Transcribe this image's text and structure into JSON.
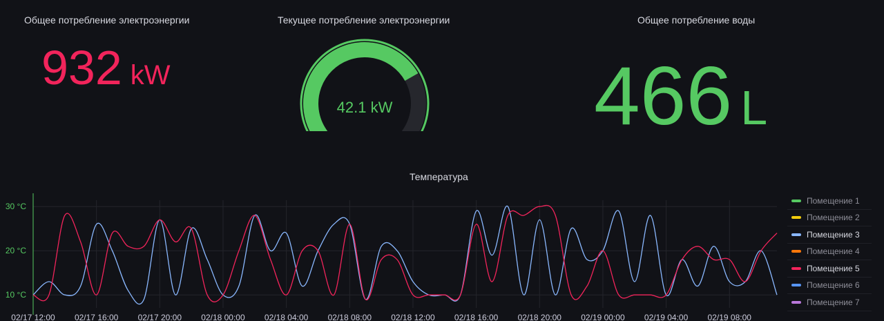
{
  "panels": {
    "total_power": {
      "title": "Общее потребление электроэнергии",
      "value": "932",
      "unit": "kW",
      "color": "#f2245b"
    },
    "current_power": {
      "title": "Текущее потребление электроэнергии",
      "value_text": "42.1 kW",
      "value": 42.1,
      "max": 60,
      "color": "#56c962"
    },
    "total_water": {
      "title": "Общее потребление воды",
      "value": "466",
      "unit": "L",
      "color": "#56c962"
    },
    "temperature": {
      "title": "Температура"
    }
  },
  "chart_data": {
    "type": "line",
    "title": "Температура",
    "x_hours": [
      0,
      1,
      2,
      3,
      4,
      5,
      6,
      7,
      8,
      9,
      10,
      11,
      12,
      13,
      14,
      15,
      16,
      17,
      18,
      19,
      20,
      21,
      22,
      23,
      24,
      25,
      26,
      27,
      28,
      29,
      30,
      31,
      32,
      33,
      34,
      35,
      36,
      37,
      38,
      39,
      40,
      41,
      42,
      43,
      44,
      45,
      46,
      47
    ],
    "x_tick_labels": [
      "02/17 12:00",
      "02/17 16:00",
      "02/17 20:00",
      "02/18 00:00",
      "02/18 04:00",
      "02/18 08:00",
      "02/18 12:00",
      "02/18 16:00",
      "02/18 20:00",
      "02/19 00:00",
      "02/19 04:00",
      "02/19 08:00"
    ],
    "y_ticks": [
      "10 °C",
      "20 °C",
      "30 °C"
    ],
    "ylim": [
      8,
      33
    ],
    "series": [
      {
        "name": "Помещение 1",
        "color": "#56c962",
        "values": []
      },
      {
        "name": "Помещение 2",
        "color": "#f2cc0c",
        "values": []
      },
      {
        "name": "Помещение 3",
        "color": "#8ab8ff",
        "values": [
          10,
          13,
          10,
          12,
          26,
          20,
          11,
          9,
          27,
          10,
          25,
          18,
          10,
          12,
          28,
          20,
          24,
          12,
          20,
          26,
          26,
          9,
          21,
          20,
          13,
          10,
          10,
          10,
          29,
          19,
          30,
          10,
          27,
          10,
          25,
          18,
          20,
          29,
          13,
          28,
          10,
          18,
          12,
          21,
          13,
          13,
          20,
          10
        ]
      },
      {
        "name": "Помещение 4",
        "color": "#ff780a",
        "values": []
      },
      {
        "name": "Помещение 5",
        "color": "#f2245b",
        "values": [
          10,
          10,
          28,
          22,
          10,
          24,
          21,
          21,
          27,
          22,
          25,
          10,
          10,
          20,
          28,
          18,
          10,
          20,
          20,
          10,
          26,
          9,
          18,
          18,
          10,
          10,
          10,
          10,
          26,
          13,
          28,
          28,
          30,
          28,
          10,
          12,
          20,
          10,
          10,
          10,
          10,
          18,
          21,
          18,
          18,
          13,
          20,
          24
        ]
      },
      {
        "name": "Помещение 6",
        "color": "#5794f2",
        "values": []
      },
      {
        "name": "Помещение 7",
        "color": "#b877d9",
        "values": []
      }
    ],
    "legend": [
      {
        "label": "Помещение 1",
        "color": "#56c962",
        "bright": false
      },
      {
        "label": "Помещение 2",
        "color": "#f2cc0c",
        "bright": false
      },
      {
        "label": "Помещение 3",
        "color": "#8ab8ff",
        "bright": true
      },
      {
        "label": "Помещение 4",
        "color": "#ff780a",
        "bright": false
      },
      {
        "label": "Помещение 5",
        "color": "#f2245b",
        "bright": true
      },
      {
        "label": "Помещение 6",
        "color": "#5794f2",
        "bright": false
      },
      {
        "label": "Помещение 7",
        "color": "#b877d9",
        "bright": false
      }
    ]
  }
}
